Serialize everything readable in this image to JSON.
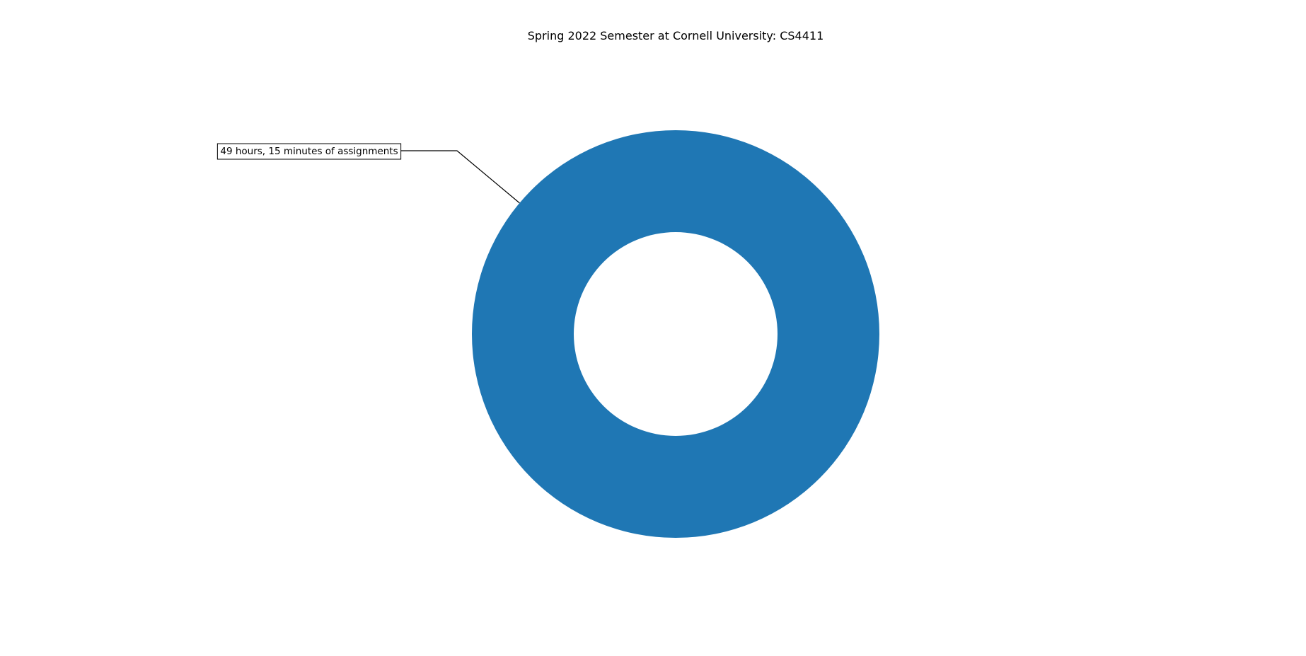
{
  "chart_data": {
    "type": "pie",
    "style": "donut",
    "title": "Spring 2022 Semester at Cornell University: CS4411",
    "slices": [
      {
        "label": "49 hours, 15 minutes of assignments",
        "value": 49.25,
        "color": "#1f77b4"
      }
    ],
    "hole_fraction": 0.5,
    "legend": "none"
  }
}
